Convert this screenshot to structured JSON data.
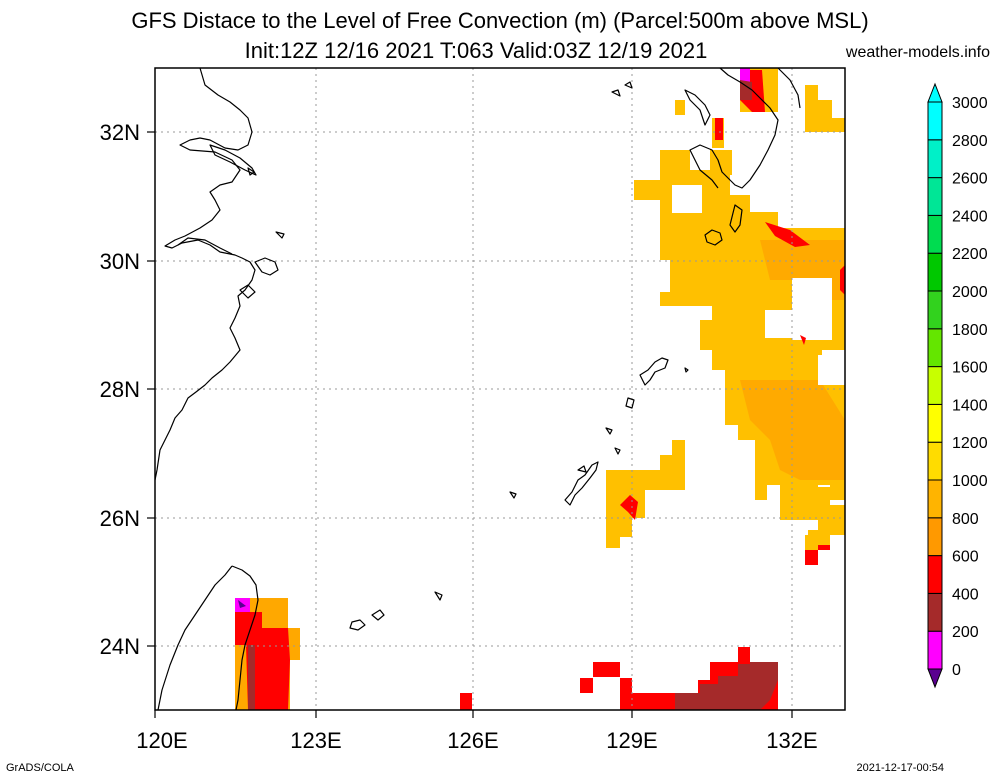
{
  "title_line1": "GFS Distace to the Level of Free Convection (m) (Parcel:500m above MSL)",
  "title_line2": "Init:12Z 12/16 2021 T:063 Valid:03Z 12/19 2021",
  "site": "weather-models.info",
  "footer_left": "GrADS/COLA",
  "footer_right": "2021-12-17-00:54",
  "map": {
    "lon_range": [
      120,
      133
    ],
    "lat_range": [
      23,
      33
    ],
    "lon_ticks": [
      {
        "value": 120,
        "label": "120E"
      },
      {
        "value": 123,
        "label": "123E"
      },
      {
        "value": 126,
        "label": "126E"
      },
      {
        "value": 129,
        "label": "129E"
      },
      {
        "value": 132,
        "label": "132E"
      }
    ],
    "lat_ticks": [
      {
        "value": 24,
        "label": "24N"
      },
      {
        "value": 26,
        "label": "26N"
      },
      {
        "value": 28,
        "label": "28N"
      },
      {
        "value": 30,
        "label": "30N"
      },
      {
        "value": 32,
        "label": "32N"
      }
    ],
    "grid": true
  },
  "colorbar": {
    "levels": [
      "0",
      "200",
      "400",
      "600",
      "800",
      "1000",
      "1200",
      "1400",
      "1600",
      "1800",
      "2000",
      "2200",
      "2400",
      "2600",
      "2800",
      "3000"
    ],
    "colors": [
      "#5a0090",
      "#ff00ff",
      "#a52a2a",
      "#ff0000",
      "#ff9900",
      "#ffb400",
      "#ffdc00",
      "#ffff00",
      "#c8ff00",
      "#64e600",
      "#32d21e",
      "#00c800",
      "#00dc50",
      "#00e696",
      "#00f0c8",
      "#00ffff",
      "#00ffff"
    ]
  },
  "field_colors": {
    "orange_light": "#ffc000",
    "orange": "#ffa800",
    "red": "#ff0000",
    "brown": "#a52a2a",
    "magenta": "#ff00ff"
  }
}
